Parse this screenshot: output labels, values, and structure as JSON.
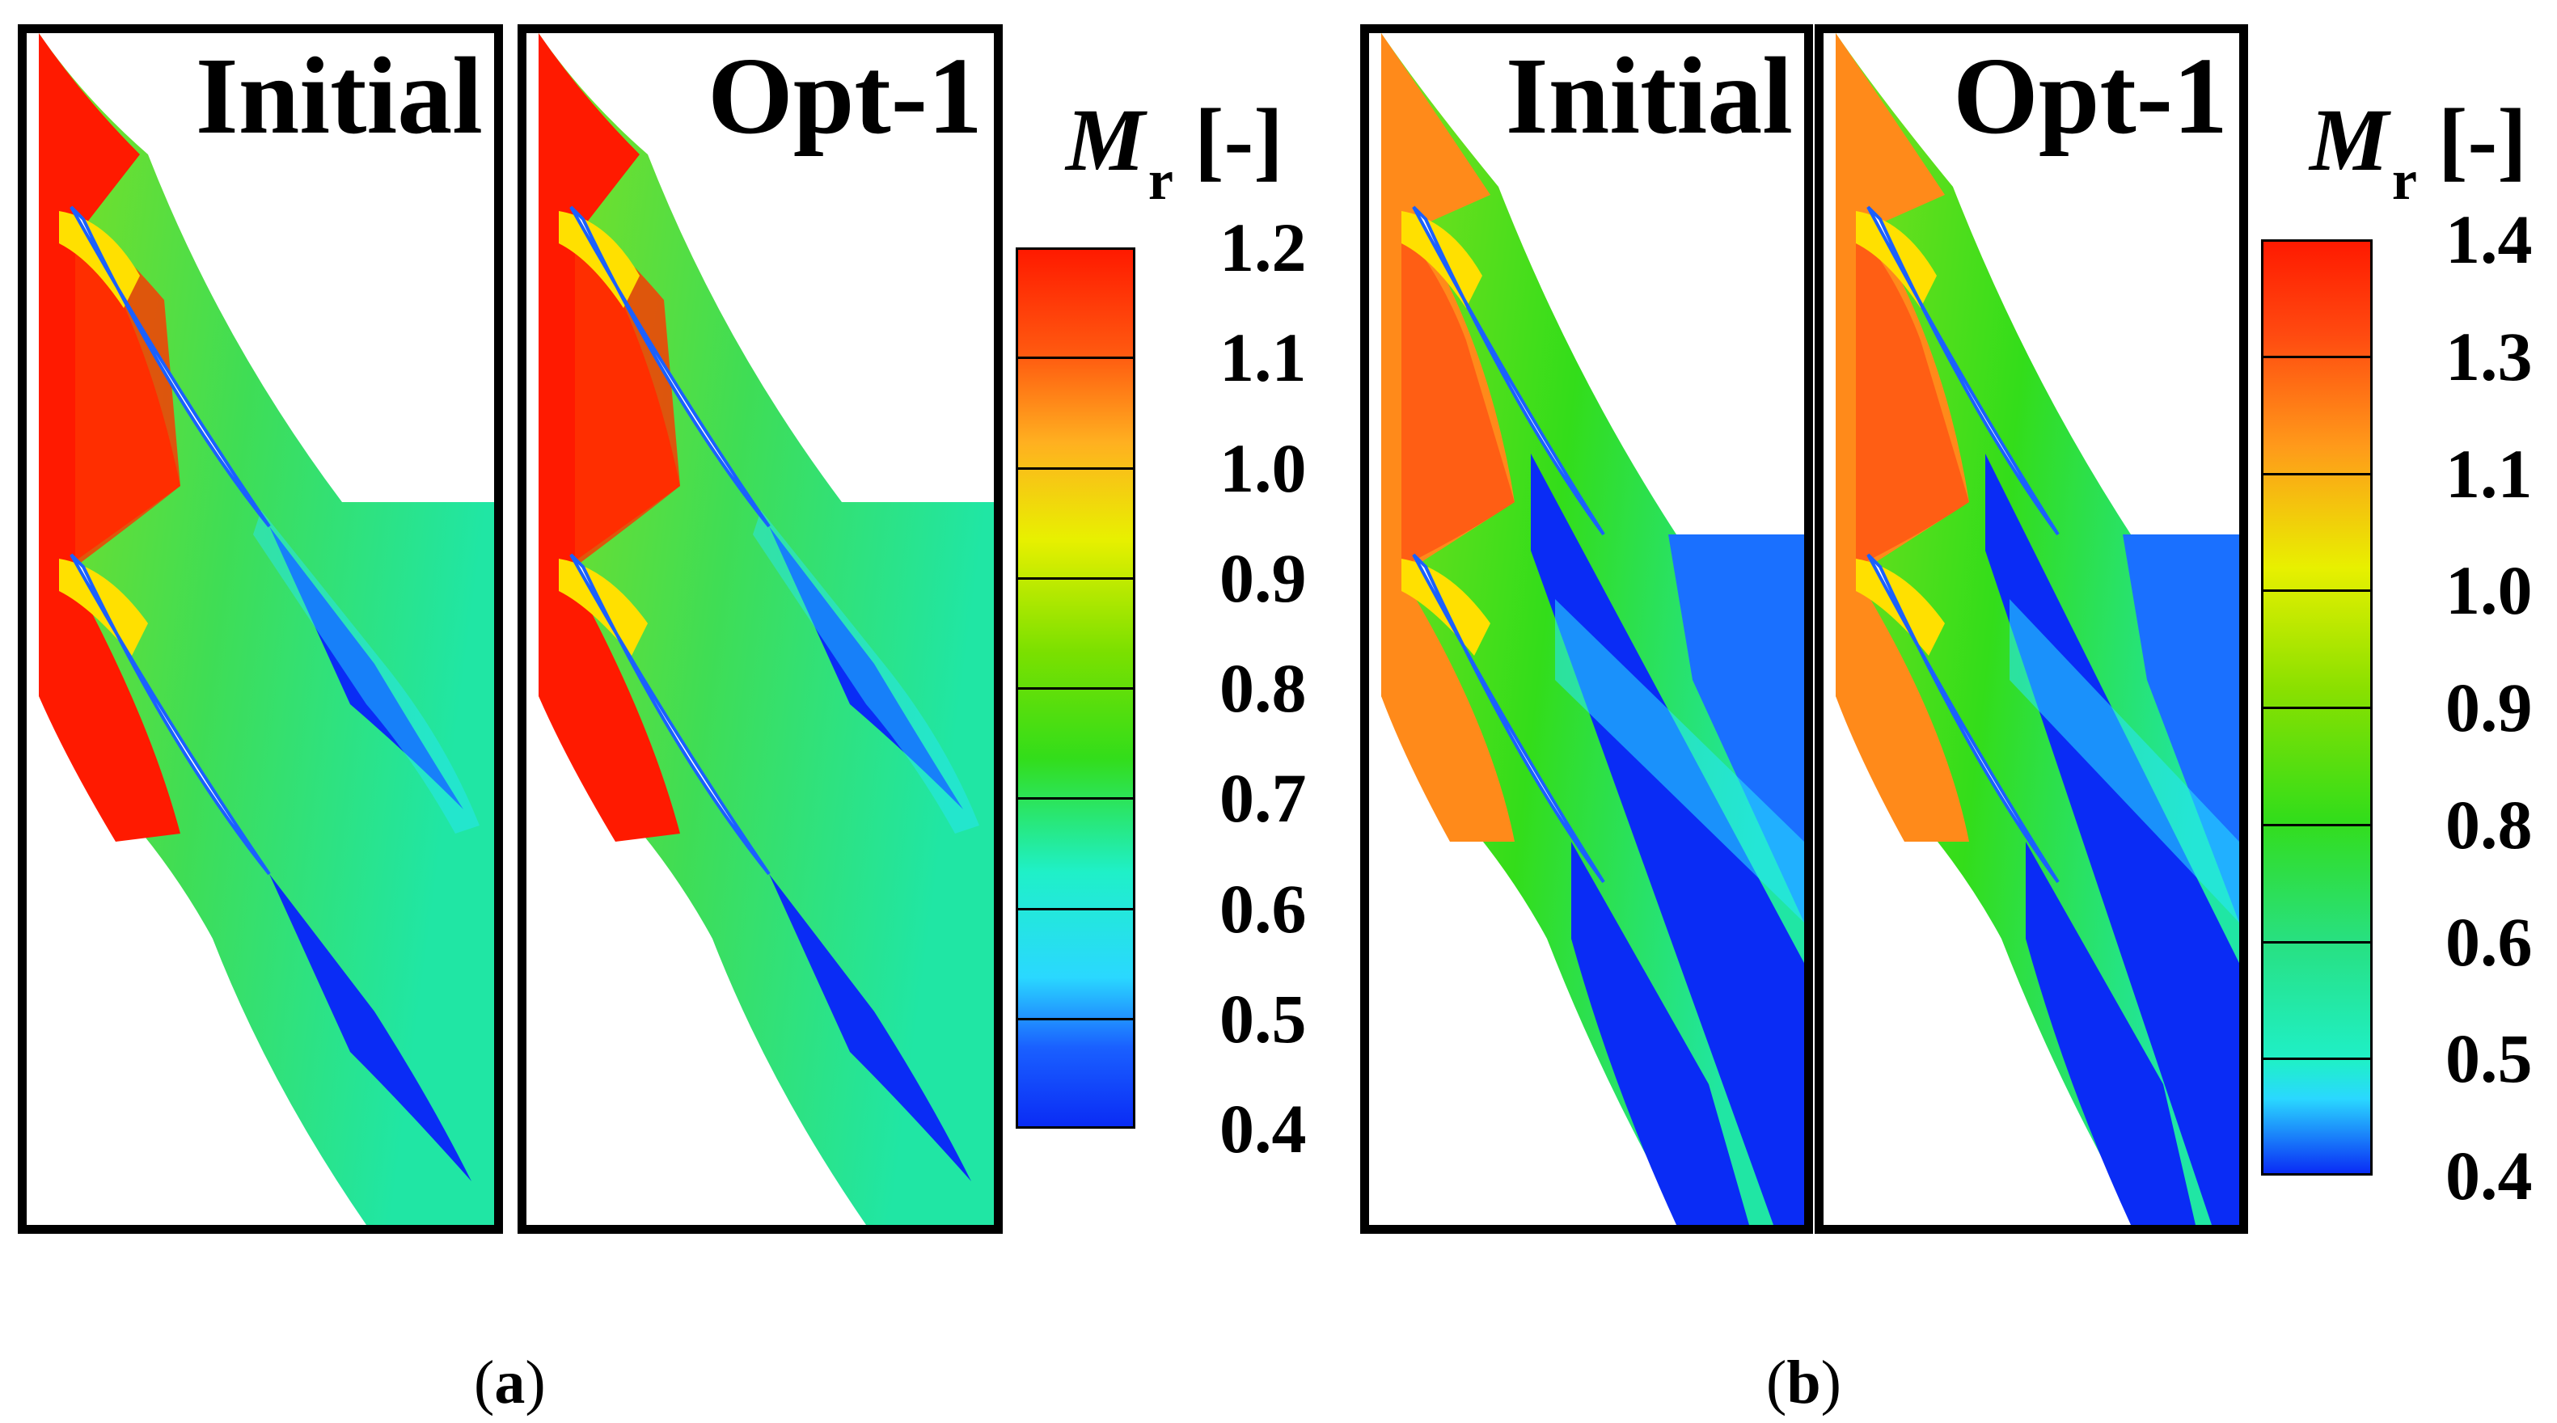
{
  "figure": {
    "panel_a": {
      "label": "a",
      "maps": [
        {
          "title": "Initial"
        },
        {
          "title": "Opt-1"
        }
      ],
      "colorbar": {
        "symbol": "M",
        "subscript": "r",
        "unit": "[-]",
        "ticks": [
          "1.2",
          "1.1",
          "1.0",
          "0.9",
          "0.8",
          "0.7",
          "0.6",
          "0.5",
          "0.4"
        ],
        "range": [
          0.4,
          1.2
        ]
      }
    },
    "panel_b": {
      "label": "b",
      "maps": [
        {
          "title": "Initial"
        },
        {
          "title": "Opt-1"
        }
      ],
      "colorbar": {
        "symbol": "M",
        "subscript": "r",
        "unit": "[-]",
        "ticks": [
          "1.4",
          "1.3",
          "1.1",
          "1.0",
          "0.9",
          "0.8",
          "0.6",
          "0.5",
          "0.4"
        ],
        "range": [
          0.4,
          1.4
        ]
      }
    },
    "colors": {
      "high": "#ff1a00",
      "orange": "#ff8a1a",
      "yellow": "#e8f000",
      "green": "#33dd1a",
      "cyan": "#1ff0c8",
      "blue": "#0a2cf5"
    }
  }
}
